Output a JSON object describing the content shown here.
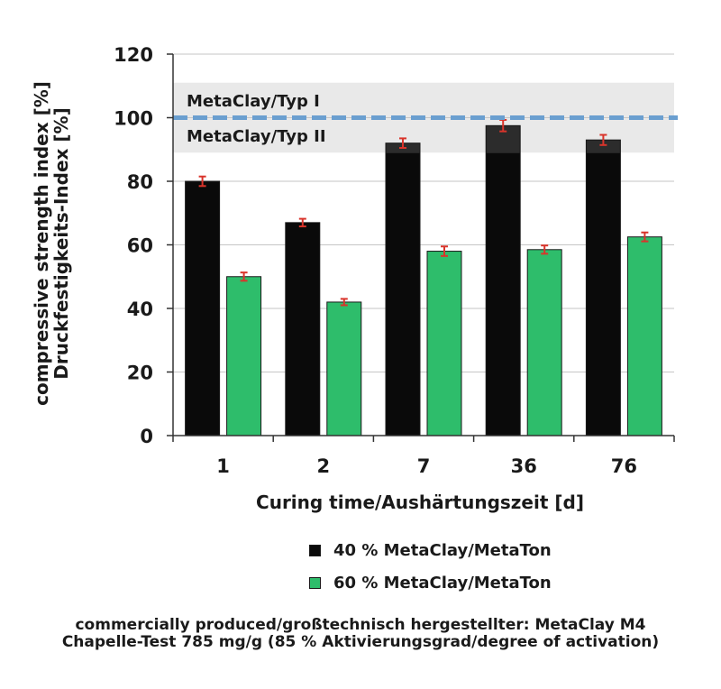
{
  "chart_data": {
    "type": "bar",
    "categories": [
      "1",
      "2",
      "7",
      "36",
      "76"
    ],
    "series": [
      {
        "name": "40 % MetaClay/MetaTon",
        "values": [
          80,
          67,
          92,
          97.5,
          93
        ],
        "errors": [
          1.5,
          1.2,
          1.5,
          1.8,
          1.6
        ],
        "color": "#0a0a0a"
      },
      {
        "name": "60 % MetaClay/MetaTon",
        "values": [
          50,
          42,
          58,
          58.5,
          62.5
        ],
        "errors": [
          1.3,
          1.0,
          1.5,
          1.3,
          1.4
        ],
        "color": "#2ebd6b"
      }
    ],
    "ylim": [
      0,
      120
    ],
    "yticks": [
      0,
      20,
      40,
      60,
      80,
      100,
      120
    ],
    "xlabel": "Curing time/Aushärtungszeit [d]",
    "ylabel_line1": "compressive strength index [%]",
    "ylabel_line2": "Druckfestigkeits-Index [%]",
    "reference_line": {
      "value": 100,
      "color": "#6a9fd0"
    },
    "bands": [
      {
        "label": "MetaClay/Typ I",
        "from": 100,
        "to": 111
      },
      {
        "label": "MetaClay/Typ II",
        "from": 89,
        "to": 100
      }
    ],
    "error_bar_color": "#d9342b",
    "grid": true,
    "legend_position": "bottom"
  },
  "footnote": {
    "line1": "commercially produced/großtechnisch hergestellter: MetaClay M4",
    "line2": "Chapelle-Test 785 mg/g (85 % Aktivierungsgrad/degree of activation)"
  }
}
